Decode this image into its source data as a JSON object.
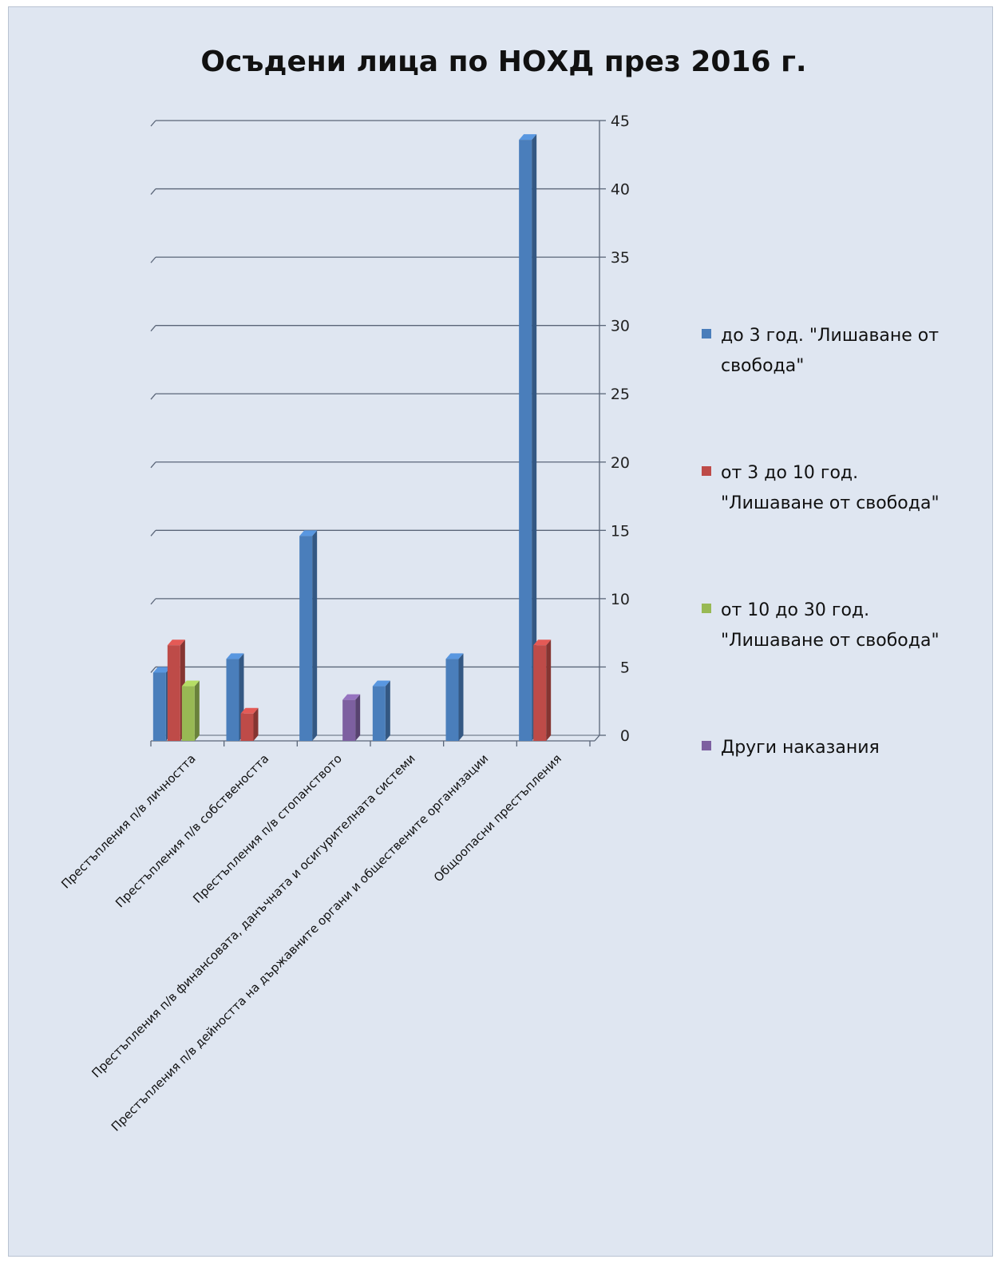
{
  "chart_data": {
    "type": "bar",
    "title": "Осъдени лица по НОХД през 2016 г.",
    "categories": [
      "Престъпления п/в личността",
      "Престъпления п/в собствеността",
      "Престъпления п/в стопанството",
      "Престъпления п/в финансовата, данъчната и осигурителната системи",
      "Престъпления п/в дейността на държавните органи и обществените организации",
      "Общоопасни престъпления"
    ],
    "series": [
      {
        "name": "до 3 год. \"Лишаване от свобода\"",
        "color": "#4a7ebb",
        "values": [
          5,
          6,
          15,
          4,
          6,
          44
        ]
      },
      {
        "name": "от 3 до 10 год. \"Лишаване от свобода\"",
        "color": "#be4b48",
        "values": [
          7,
          2,
          0,
          0,
          0,
          7
        ]
      },
      {
        "name": "от 10 до 30 год. \"Лишаване от свобода\"",
        "color": "#98b954",
        "values": [
          4,
          0,
          0,
          0,
          0,
          0
        ]
      },
      {
        "name": "Други наказания",
        "color": "#7d60a0",
        "values": [
          0,
          0,
          3,
          0,
          0,
          0
        ]
      }
    ],
    "ylim": [
      0,
      45
    ],
    "yticks": [
      0,
      5,
      10,
      15,
      20,
      25,
      30,
      35,
      40,
      45
    ],
    "grid": true,
    "legend": "right",
    "axis_position": "right"
  },
  "legend_lines": [
    [
      "до 3 год. \"Лишаване от",
      "свобода\""
    ],
    [
      "от 3 до 10 год.",
      "\"Лишаване от свобода\""
    ],
    [
      "от 10 до 30 год.",
      "\"Лишаване от свобода\""
    ],
    [
      "Други наказания"
    ]
  ]
}
